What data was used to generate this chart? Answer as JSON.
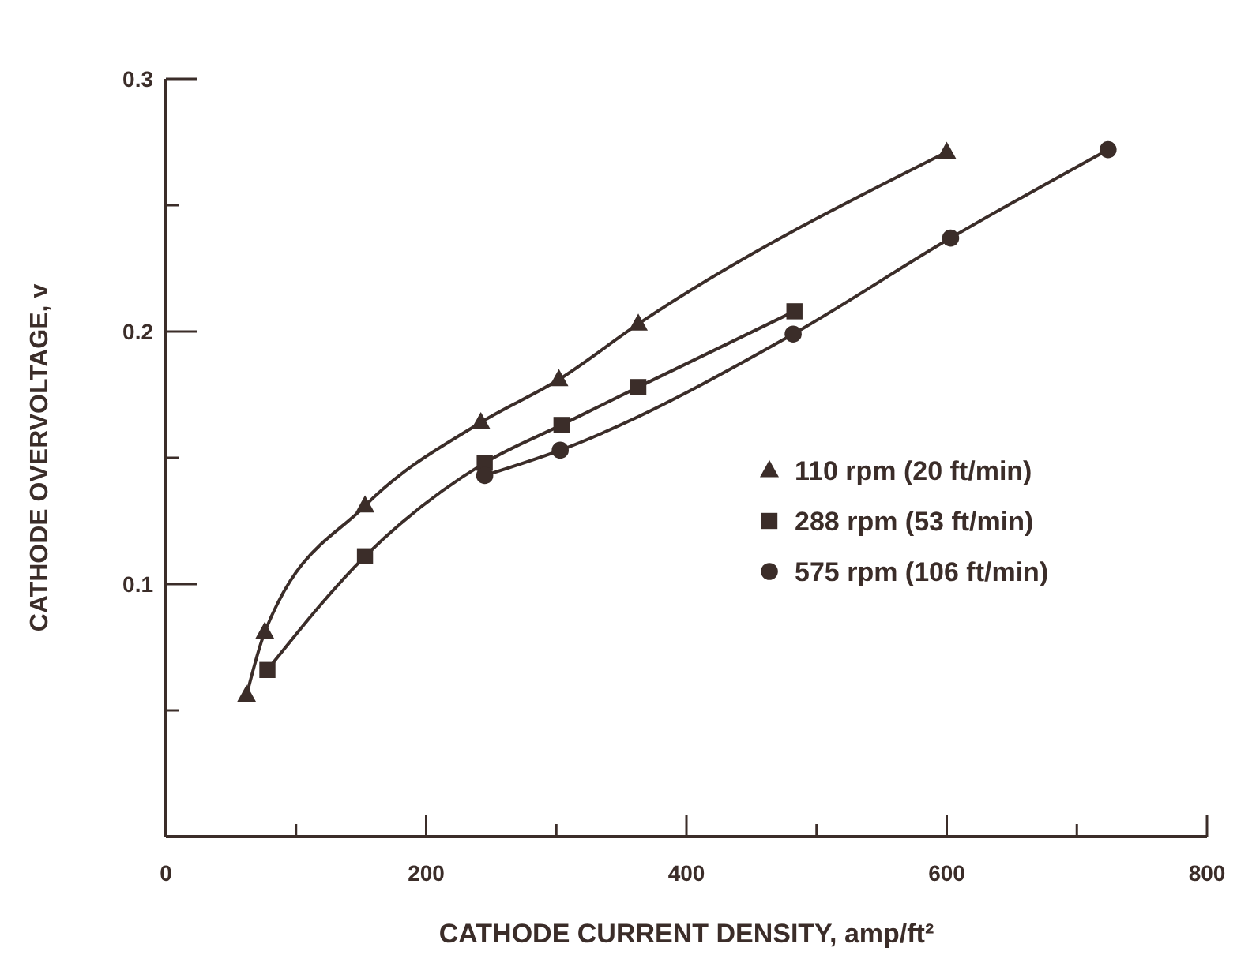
{
  "chart_data": {
    "type": "line",
    "xlabel": "CATHODE CURRENT DENSITY, amp/ft²",
    "ylabel": "CATHODE OVERVOLTAGE, v",
    "xlim": [
      0,
      800
    ],
    "ylim": [
      0,
      0.3
    ],
    "xticks": [
      0,
      {
        "value": 100,
        "label": null
      },
      200,
      {
        "value": 300,
        "label": null
      },
      400,
      {
        "value": 500,
        "label": null
      },
      600,
      {
        "value": 700,
        "label": null
      },
      800
    ],
    "yticks": [
      {
        "value": 0.05,
        "label": null
      },
      0.1,
      {
        "value": 0.15,
        "label": null
      },
      0.2,
      {
        "value": 0.25,
        "label": null
      },
      0.3
    ],
    "grid": false,
    "legend": "right",
    "line_style": "solid",
    "series": [
      {
        "name": "110 rpm (20 ft/min)",
        "color": "#3b2d29",
        "marker": "triangle",
        "x": [
          62,
          76,
          153,
          242,
          302,
          363,
          600
        ],
        "values": [
          0.056,
          0.081,
          0.131,
          0.164,
          0.181,
          0.203,
          0.271
        ]
      },
      {
        "name": "288 rpm (53 ft/min)",
        "color": "#3b2d29",
        "marker": "square",
        "x": [
          78,
          153,
          245,
          304,
          363,
          483
        ],
        "values": [
          0.066,
          0.111,
          0.148,
          0.163,
          0.178,
          0.208
        ]
      },
      {
        "name": "575 rpm (106 ft/min)",
        "color": "#3b2d29",
        "marker": "circle",
        "x": [
          245,
          303,
          482,
          603,
          724
        ],
        "values": [
          0.143,
          0.153,
          0.199,
          0.237,
          0.272
        ]
      }
    ]
  }
}
